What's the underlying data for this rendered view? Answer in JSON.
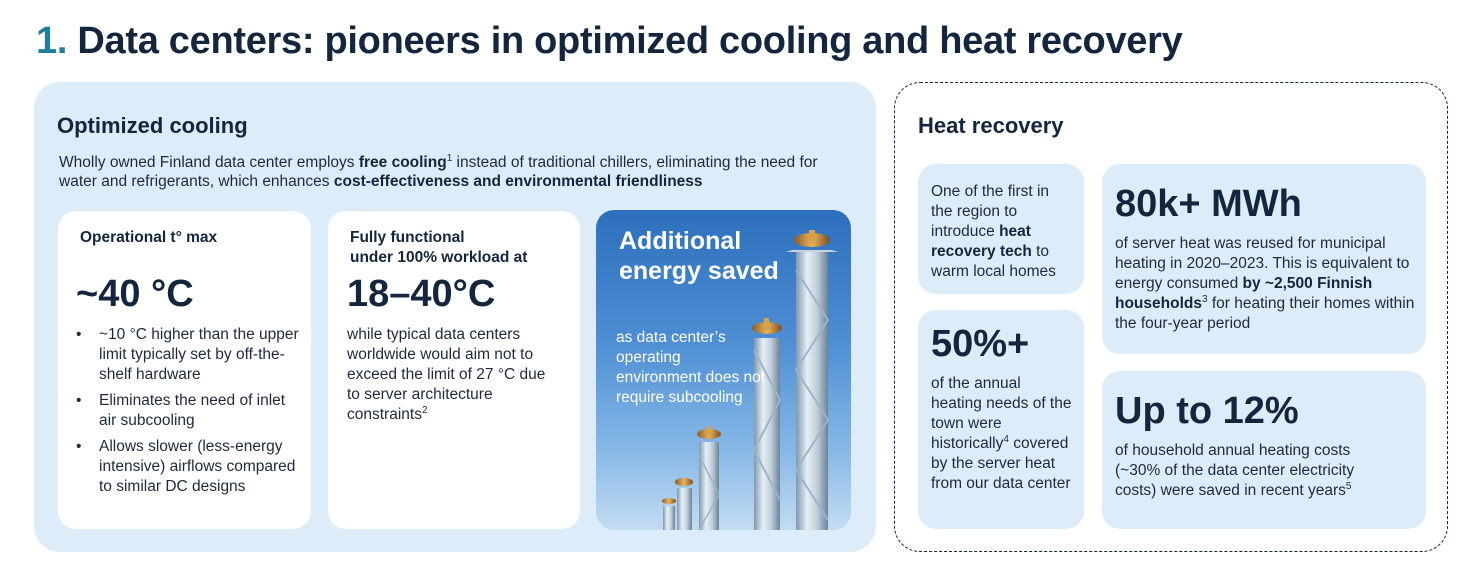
{
  "title": {
    "number": "1.",
    "text": "Data centers: pioneers in optimized cooling and heat recovery"
  },
  "cooling": {
    "heading": "Optimized cooling",
    "desc_1": "Wholly owned Finland data center employs ",
    "desc_bold_1": "free cooling",
    "desc_sup_1": "1",
    "desc_2": " instead of traditional chillers, eliminating the need for water and refrigerants, which enhances ",
    "desc_bold_2": "cost-effectiveness and environmental friendliness",
    "card1": {
      "label": "Operational t° max",
      "value": "~40 °C",
      "bullets": [
        "~10 °C higher than the upper limit typically set by off-the-shelf hardware",
        "Eliminates the need of inlet air subcooling",
        "Allows slower (less-energy intensive) airflows compared to similar DC designs"
      ]
    },
    "card2": {
      "label_line1": "Fully functional",
      "label_line2": "under 100% workload at",
      "value": "18–40°C",
      "text": "while typical data centers worldwide would aim not to exceed the limit of 27 °C due to server architecture constraints",
      "sup": "2"
    },
    "card3": {
      "title": "Additional energy saved",
      "text": "as data center’s operating environment does not require subcooling"
    }
  },
  "heat": {
    "heading": "Heat recovery",
    "box1": {
      "text_1": "One of the first in the region to introduce ",
      "bold": "heat recovery tech",
      "text_2": " to warm local homes"
    },
    "box2": {
      "value": "50%+",
      "text_1": "of the annual heating needs of the town were historically",
      "sup": "4",
      "text_2": " covered by the server heat from our data center"
    },
    "box3": {
      "value": "80k+ MWh",
      "text_1": "of server heat was reused for municipal heating in 2020–2023. This is equivalent to energy consumed ",
      "bold": "by ~2,500 Finnish households",
      "sup": "3",
      "text_2": " for heating their homes within the four-year period"
    },
    "box4": {
      "value": "Up to 12%",
      "text_1": "of household annual heating costs (~30% of the data center electricity costs) were saved in recent years",
      "sup": "5"
    }
  },
  "colors": {
    "title": "#14263d",
    "accent_number": "#1f7f9a",
    "panel": "#dcecf8"
  }
}
